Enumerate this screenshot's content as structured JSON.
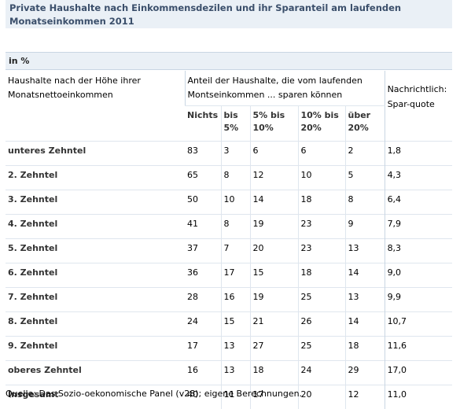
{
  "title": "Private Haushalte nach Einkommensdezilen und ihr Sparanteil am laufenden Monatseinkommen 2011",
  "unit": "in %",
  "header": {
    "row_label": "Haushalte nach der Höhe ihrer Monatsnettoeinkommen",
    "group_label": "Anteil der Haushalte, die vom laufenden Montseinkommen ... sparen können",
    "side_label": "Nachrichtlich: Spar-quote",
    "sub_columns": [
      "Nichts",
      "bis 5%",
      "5% bis 10%",
      "10% bis 20%",
      "über 20%"
    ]
  },
  "rows": [
    {
      "label": "unteres Zehntel",
      "values": [
        "83",
        "3",
        "6",
        "6",
        "2"
      ],
      "quote": "1,8"
    },
    {
      "label": "2. Zehntel",
      "values": [
        "65",
        "8",
        "12",
        "10",
        "5"
      ],
      "quote": "4,3"
    },
    {
      "label": "3. Zehntel",
      "values": [
        "50",
        "10",
        "14",
        "18",
        "8"
      ],
      "quote": "6,4"
    },
    {
      "label": "4. Zehntel",
      "values": [
        "41",
        "8",
        "19",
        "23",
        "9"
      ],
      "quote": "7,9"
    },
    {
      "label": "5. Zehntel",
      "values": [
        "37",
        "7",
        "20",
        "23",
        "13"
      ],
      "quote": "8,3"
    },
    {
      "label": "6. Zehntel",
      "values": [
        "36",
        "17",
        "15",
        "18",
        "14"
      ],
      "quote": "9,0"
    },
    {
      "label": "7. Zehntel",
      "values": [
        "28",
        "16",
        "19",
        "25",
        "13"
      ],
      "quote": "9,9"
    },
    {
      "label": "8. Zehntel",
      "values": [
        "24",
        "15",
        "21",
        "26",
        "14"
      ],
      "quote": "10,7"
    },
    {
      "label": "9. Zehntel",
      "values": [
        "17",
        "13",
        "27",
        "25",
        "18"
      ],
      "quote": "11,6"
    },
    {
      "label": "oberes Zehntel",
      "values": [
        "16",
        "13",
        "18",
        "24",
        "29"
      ],
      "quote": "17,0"
    },
    {
      "label": "Insgesamt",
      "values": [
        "40",
        "11",
        "17",
        "20",
        "12"
      ],
      "quote": "11,0"
    }
  ],
  "source": "Quelle: Das Sozio-oekonomische Panel (v28); eigene Berechnungen."
}
